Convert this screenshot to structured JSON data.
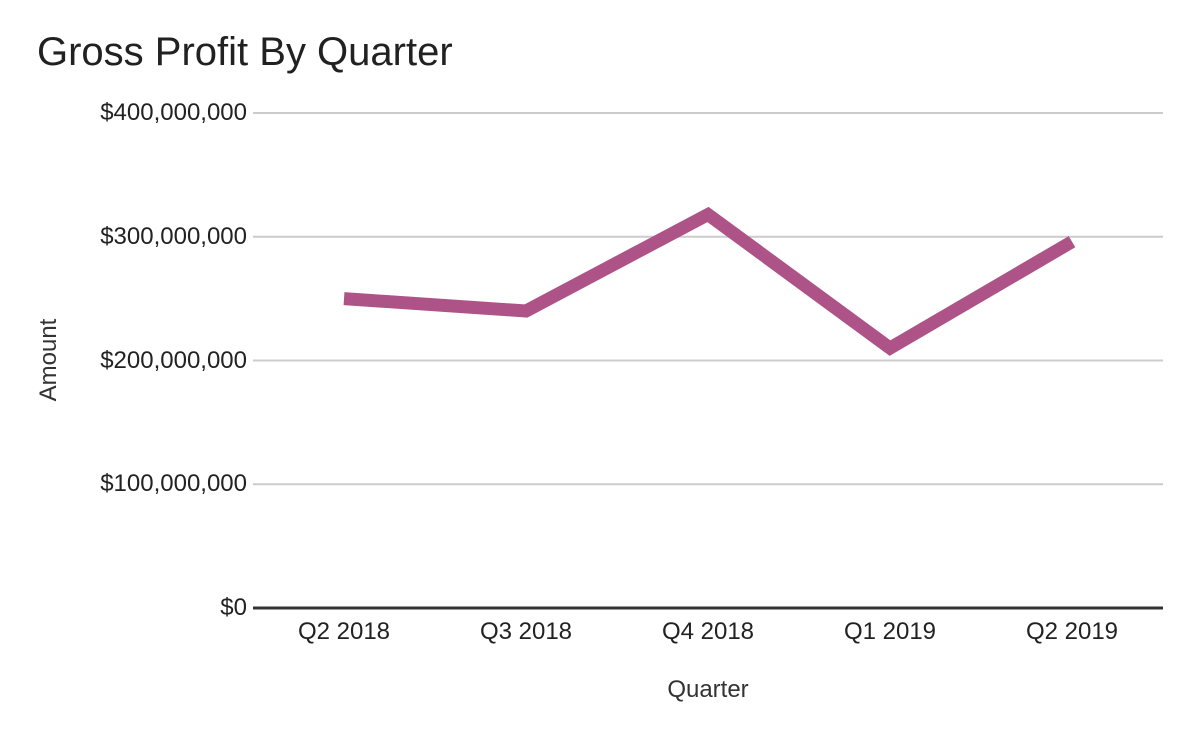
{
  "chart_data": {
    "type": "line",
    "title": "Gross Profit By Quarter",
    "xlabel": "Quarter",
    "ylabel": "Amount",
    "categories": [
      "Q2 2018",
      "Q3 2018",
      "Q4 2018",
      "Q1 2019",
      "Q2 2019"
    ],
    "series": [
      {
        "values": [
          250000000,
          240000000,
          318000000,
          210000000,
          296000000
        ]
      }
    ],
    "ylim": [
      0,
      400000000
    ],
    "y_tick_values": [
      0,
      100000000,
      200000000,
      300000000,
      400000000
    ],
    "y_ticks": [
      "$0",
      "$100,000,000",
      "$200,000,000",
      "$300,000,000",
      "$400,000,000"
    ],
    "grid": true,
    "legend": "none",
    "line_color": "#ae5387",
    "line_width": 13,
    "grid_color": "#cccccc",
    "axis_line_color": "#333333",
    "title_color": "#212121",
    "tick_label_color": "#222222",
    "axis_title_color": "#333333",
    "background_color": "#ffffff"
  }
}
